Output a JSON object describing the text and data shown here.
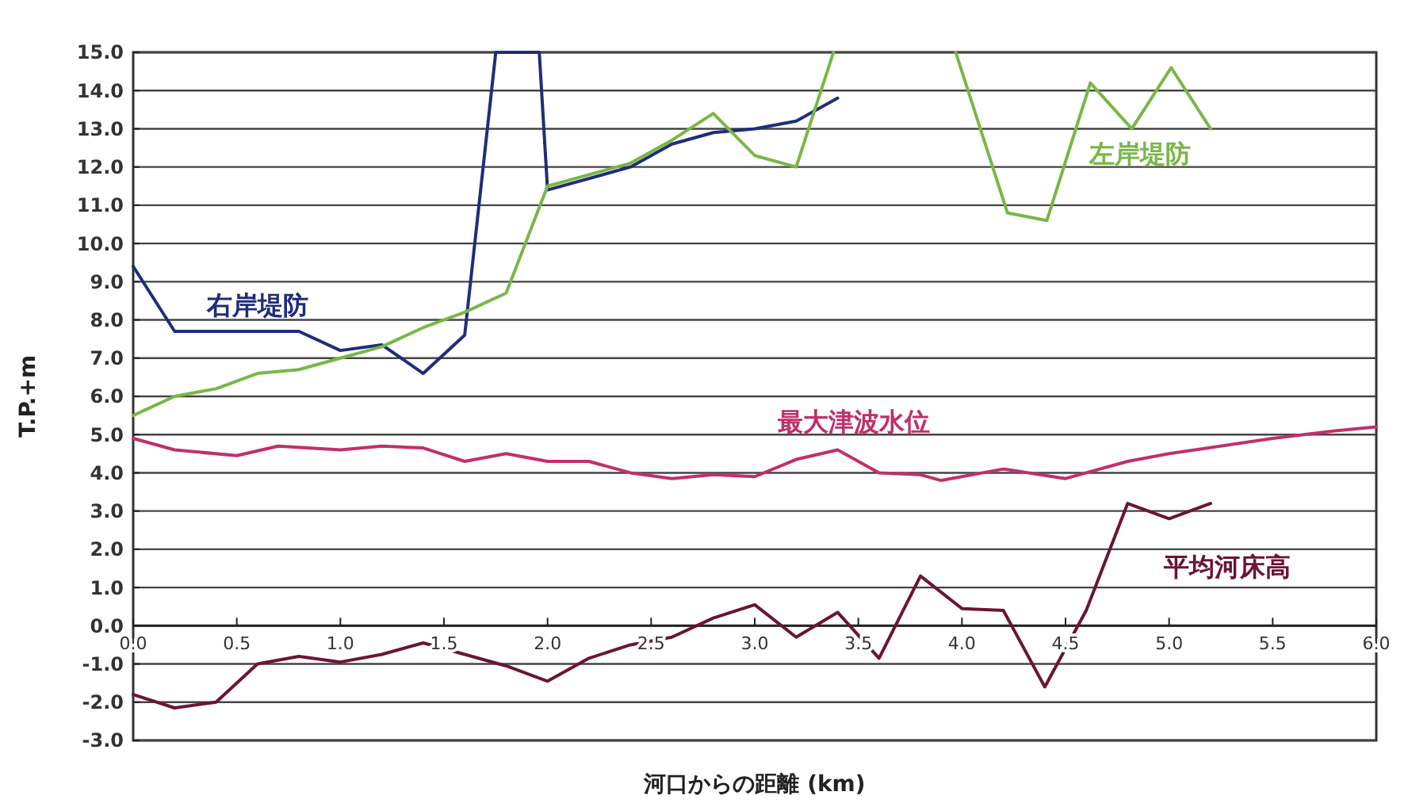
{
  "chart_data": {
    "type": "line",
    "xlabel": "河口からの距離 (km)",
    "ylabel": "T.P.+m",
    "xlim": [
      0,
      6
    ],
    "xticks": [
      {
        "value": 0,
        "label": "0.0"
      },
      {
        "value": 0.5,
        "label": "0.5"
      },
      {
        "value": 1,
        "label": "1.0"
      },
      {
        "value": 1.5,
        "label": "1.5"
      },
      {
        "value": 2,
        "label": "2.0"
      },
      {
        "value": 2.5,
        "label": "2.5"
      },
      {
        "value": 3,
        "label": "3.0"
      },
      {
        "value": 3.5,
        "label": "3.5"
      },
      {
        "value": 4,
        "label": "4.0"
      },
      {
        "value": 4.5,
        "label": "4.5"
      },
      {
        "value": 5,
        "label": "5.0"
      },
      {
        "value": 5.5,
        "label": "5.5"
      },
      {
        "value": 6,
        "label": "6.0"
      }
    ],
    "ylim": [
      -3,
      15
    ],
    "yticks": [
      {
        "value": -3,
        "label": "-3.0"
      },
      {
        "value": -2,
        "label": "-2.0"
      },
      {
        "value": -1,
        "label": "-1.0"
      },
      {
        "value": 0,
        "label": "0.0"
      },
      {
        "value": 1,
        "label": "1.0"
      },
      {
        "value": 2,
        "label": "2.0"
      },
      {
        "value": 3,
        "label": "3.0"
      },
      {
        "value": 4,
        "label": "4.0"
      },
      {
        "value": 5,
        "label": "5.0"
      },
      {
        "value": 6,
        "label": "6.0"
      },
      {
        "value": 7,
        "label": "7.0"
      },
      {
        "value": 8,
        "label": "8.0"
      },
      {
        "value": 9,
        "label": "9.0"
      },
      {
        "value": 10,
        "label": "10.0"
      },
      {
        "value": 11,
        "label": "11.0"
      },
      {
        "value": 12,
        "label": "12.0"
      },
      {
        "value": 13,
        "label": "13.0"
      },
      {
        "value": 14,
        "label": "14.0"
      },
      {
        "value": 15,
        "label": "15.0"
      }
    ],
    "grid": "y",
    "marker": "none",
    "line_style": "solid",
    "series": [
      {
        "name": "右岸堤防",
        "color": "#1f2d7a",
        "x": [
          0,
          0.2,
          0.8,
          1.0,
          1.2,
          1.4,
          1.6,
          1.75,
          1.96,
          2.0,
          2.4,
          2.6,
          2.8,
          3.0,
          3.2,
          3.4
        ],
        "values": [
          9.4,
          7.7,
          7.7,
          7.2,
          7.35,
          6.6,
          7.6,
          15,
          15,
          11.4,
          12.0,
          12.6,
          12.9,
          13.0,
          13.2,
          13.8
        ]
      },
      {
        "name": "左岸堤防",
        "color": "#7ab648",
        "x": [
          0,
          0.2,
          0.4,
          0.6,
          0.8,
          1.0,
          1.2,
          1.4,
          1.6,
          1.8,
          2.0,
          2.2,
          2.4,
          2.6,
          2.8,
          3.0,
          3.2,
          3.38,
          3.7,
          3.97,
          4.22,
          4.41,
          4.62,
          4.82,
          5.01,
          5.2
        ],
        "values": [
          5.5,
          6.0,
          6.2,
          6.6,
          6.7,
          7.0,
          7.3,
          7.8,
          8.2,
          8.7,
          11.5,
          11.8,
          12.1,
          12.7,
          13.4,
          12.3,
          12.0,
          15,
          null,
          15,
          10.8,
          10.6,
          14.2,
          13.0,
          14.6,
          13.0
        ]
      },
      {
        "name": "最大津波水位",
        "color": "#c0306a",
        "x": [
          0,
          0.2,
          0.5,
          0.7,
          1.0,
          1.2,
          1.4,
          1.6,
          1.8,
          2.0,
          2.2,
          2.4,
          2.6,
          2.8,
          3.0,
          3.2,
          3.4,
          3.6,
          3.8,
          3.9,
          4.2,
          4.5,
          4.8,
          5.0,
          5.5,
          5.8,
          6.0
        ],
        "values": [
          4.9,
          4.6,
          4.45,
          4.7,
          4.6,
          4.7,
          4.65,
          4.3,
          4.5,
          4.3,
          4.3,
          4.0,
          3.85,
          3.95,
          3.9,
          4.35,
          4.6,
          4.0,
          3.95,
          3.8,
          4.1,
          3.85,
          4.3,
          4.5,
          4.9,
          5.1,
          5.2
        ]
      },
      {
        "name": "平均河床高",
        "color": "#6b1530",
        "x": [
          0,
          0.2,
          0.4,
          0.6,
          0.8,
          1.0,
          1.2,
          1.4,
          1.6,
          1.8,
          2.0,
          2.2,
          2.4,
          2.6,
          2.8,
          3.0,
          3.2,
          3.4,
          3.6,
          3.8,
          4.0,
          4.2,
          4.4,
          4.6,
          4.8,
          5.0,
          5.2
        ],
        "values": [
          -1.8,
          -2.15,
          -2.0,
          -1.0,
          -0.8,
          -0.95,
          -0.75,
          -0.45,
          -0.75,
          -1.05,
          -1.45,
          -0.85,
          -0.5,
          -0.3,
          0.2,
          0.55,
          -0.3,
          0.35,
          -0.85,
          1.3,
          0.45,
          0.4,
          -1.6,
          0.4,
          3.2,
          2.8,
          3.2
        ]
      }
    ]
  }
}
